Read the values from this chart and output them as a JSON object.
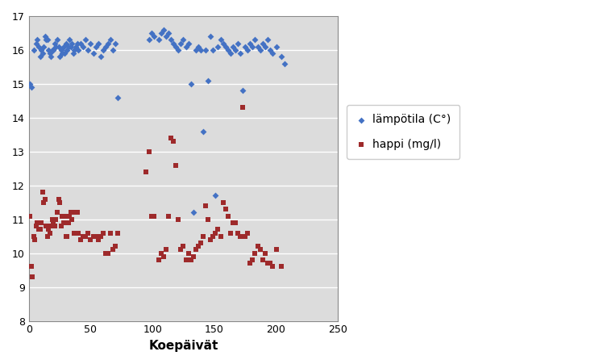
{
  "title": "",
  "xlabel": "Koepäivät",
  "ylabel": "",
  "xlim": [
    0,
    250
  ],
  "ylim": [
    8,
    17
  ],
  "yticks": [
    8,
    9,
    10,
    11,
    12,
    13,
    14,
    15,
    16,
    17
  ],
  "xticks": [
    0,
    50,
    100,
    150,
    200,
    250
  ],
  "bg_color": "#DCDCDC",
  "grid_color": "#FFFFFF",
  "temp_color": "#4472C4",
  "oxy_color": "#9E2A2B",
  "legend_temp": "lämpötila (C°)",
  "legend_oxy": "happi (mg/l)",
  "temp_x": [
    1,
    2,
    4,
    6,
    7,
    8,
    9,
    10,
    11,
    12,
    13,
    14,
    15,
    16,
    17,
    18,
    19,
    20,
    21,
    22,
    23,
    24,
    25,
    26,
    27,
    28,
    29,
    30,
    31,
    32,
    33,
    34,
    35,
    36,
    37,
    38,
    39,
    40,
    42,
    44,
    46,
    48,
    50,
    52,
    54,
    56,
    58,
    60,
    62,
    64,
    66,
    68,
    70,
    72,
    97,
    99,
    101,
    105,
    107,
    109,
    111,
    113,
    115,
    117,
    119,
    121,
    123,
    125,
    127,
    129,
    131,
    133,
    135,
    137,
    139,
    141,
    143,
    145,
    147,
    149,
    151,
    153,
    155,
    157,
    159,
    161,
    163,
    165,
    167,
    169,
    171,
    173,
    175,
    177,
    179,
    181,
    183,
    185,
    187,
    189,
    191,
    193,
    195,
    197,
    200,
    204,
    207
  ],
  "temp_y": [
    15.0,
    14.9,
    16.0,
    16.2,
    16.3,
    16.1,
    15.8,
    16.0,
    15.9,
    16.1,
    16.4,
    16.3,
    16.3,
    16.0,
    15.9,
    15.8,
    16.0,
    16.0,
    16.2,
    16.1,
    16.3,
    16.1,
    15.8,
    16.0,
    15.9,
    16.1,
    15.9,
    16.2,
    16.0,
    16.1,
    16.3,
    16.1,
    16.2,
    15.9,
    16.0,
    16.1,
    16.2,
    16.0,
    16.2,
    16.1,
    16.3,
    16.0,
    16.2,
    15.9,
    16.1,
    16.2,
    15.8,
    16.0,
    16.1,
    16.2,
    16.3,
    16.0,
    16.2,
    14.6,
    16.3,
    16.5,
    16.4,
    16.3,
    16.5,
    16.6,
    16.4,
    16.5,
    16.3,
    16.2,
    16.1,
    16.0,
    16.2,
    16.3,
    16.1,
    16.2,
    15.0,
    11.2,
    16.0,
    16.1,
    16.0,
    13.6,
    16.0,
    15.1,
    16.4,
    16.0,
    11.7,
    16.1,
    16.3,
    16.2,
    16.1,
    16.0,
    15.9,
    16.1,
    16.0,
    16.2,
    15.9,
    14.8,
    16.1,
    16.0,
    16.2,
    16.1,
    16.3,
    16.1,
    16.0,
    16.2,
    16.1,
    16.3,
    16.0,
    15.9,
    16.1,
    15.8,
    15.6
  ],
  "oxy_x": [
    1,
    2,
    3,
    4,
    5,
    6,
    7,
    8,
    9,
    10,
    11,
    12,
    13,
    14,
    15,
    16,
    17,
    18,
    19,
    20,
    21,
    22,
    23,
    24,
    25,
    26,
    27,
    28,
    29,
    30,
    31,
    32,
    33,
    34,
    35,
    36,
    37,
    38,
    39,
    40,
    42,
    44,
    46,
    48,
    50,
    52,
    54,
    56,
    58,
    60,
    62,
    64,
    66,
    68,
    70,
    72,
    95,
    97,
    99,
    101,
    105,
    107,
    109,
    111,
    113,
    115,
    117,
    119,
    121,
    123,
    125,
    127,
    129,
    131,
    133,
    135,
    137,
    139,
    141,
    143,
    145,
    147,
    149,
    151,
    153,
    155,
    157,
    159,
    161,
    163,
    165,
    167,
    169,
    171,
    173,
    175,
    177,
    179,
    181,
    183,
    185,
    187,
    189,
    191,
    193,
    195,
    197,
    200,
    204
  ],
  "oxy_y": [
    11.1,
    9.6,
    9.3,
    10.5,
    10.4,
    10.8,
    10.9,
    10.7,
    10.7,
    10.9,
    11.8,
    11.5,
    11.6,
    10.8,
    10.5,
    10.7,
    10.6,
    10.8,
    11.0,
    10.9,
    10.8,
    11.0,
    11.2,
    11.6,
    11.5,
    10.8,
    11.1,
    10.9,
    11.1,
    10.5,
    10.5,
    10.9,
    11.1,
    11.2,
    11.0,
    11.2,
    10.6,
    10.6,
    11.2,
    10.6,
    10.4,
    10.5,
    10.5,
    10.6,
    10.4,
    10.5,
    10.5,
    10.4,
    10.5,
    10.6,
    10.0,
    10.0,
    10.6,
    10.1,
    10.2,
    10.6,
    12.4,
    13.0,
    11.1,
    11.1,
    9.8,
    10.0,
    9.9,
    10.1,
    11.1,
    13.4,
    13.3,
    12.6,
    11.0,
    10.1,
    10.2,
    9.8,
    10.0,
    9.8,
    9.9,
    10.1,
    10.2,
    10.3,
    10.5,
    11.4,
    11.0,
    10.4,
    10.5,
    10.6,
    10.7,
    10.5,
    11.5,
    11.3,
    11.1,
    10.6,
    10.9,
    10.9,
    10.6,
    10.5,
    14.3,
    10.5,
    10.6,
    9.7,
    9.8,
    10.0,
    10.2,
    10.1,
    9.8,
    10.0,
    9.7,
    9.7,
    9.6,
    10.1,
    9.6
  ]
}
